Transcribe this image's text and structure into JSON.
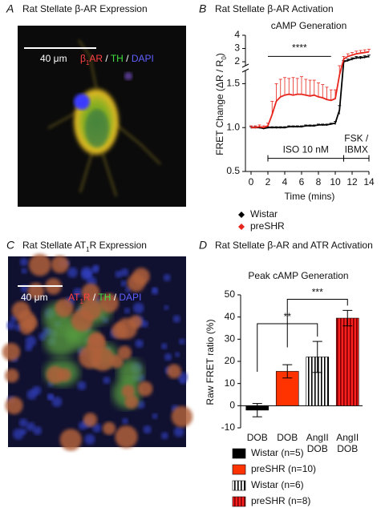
{
  "panels": [
    {
      "label": "A",
      "title": [
        {
          "text": "Rat Stellate β-AR Expression"
        }
      ]
    },
    {
      "label": "B",
      "title": [
        {
          "text": "Rat Stellate β-AR Activation"
        }
      ]
    },
    {
      "label": "C",
      "title": [
        {
          "text": "Rat Stellate AT"
        },
        {
          "text": "1",
          "sub": true
        },
        {
          "text": "R Expression"
        }
      ]
    },
    {
      "label": "D",
      "title": [
        {
          "text": "Rat Stellate β-AR and ATR Activation"
        }
      ]
    }
  ],
  "images": [
    {
      "scale": "40 μm",
      "stain": [
        {
          "text": "β",
          "color": "#ff4040"
        },
        {
          "text": "1",
          "color": "#ff4040",
          "sub": true
        },
        {
          "text": "AR",
          "color": "#ff4040"
        },
        {
          "text": " / ",
          "color": "#ffffff"
        },
        {
          "text": "TH",
          "color": "#40e040"
        },
        {
          "text": " / ",
          "color": "#ffffff"
        },
        {
          "text": "DAPI",
          "color": "#6060ff"
        }
      ]
    },
    {
      "scale": "40 μm",
      "stain": [
        {
          "text": "AT",
          "color": "#ff4040"
        },
        {
          "text": "1",
          "color": "#ff4040",
          "sub": true
        },
        {
          "text": "R",
          "color": "#ff4040"
        },
        {
          "text": " / ",
          "color": "#ffffff"
        },
        {
          "text": "TH",
          "color": "#40e040"
        },
        {
          "text": " / ",
          "color": "#ffffff"
        },
        {
          "text": "DAPI",
          "color": "#6060ff"
        }
      ]
    }
  ],
  "chart_data": [
    {
      "type": "line",
      "title": "cAMP Generation",
      "ylabel": [
        {
          "text": "FRET Change (ΔR / R"
        },
        {
          "text": "0",
          "sub": true
        },
        {
          "text": ")"
        }
      ],
      "xlabel": "Time (mins)",
      "x": [
        0,
        0.5,
        1,
        1.5,
        2,
        2.5,
        3,
        3.5,
        4,
        4.5,
        5,
        5.5,
        6,
        6.5,
        7,
        7.5,
        8,
        8.5,
        9,
        9.5,
        10,
        10.5,
        11,
        11.5,
        12,
        12.5,
        13,
        13.5,
        14
      ],
      "xlim": [
        0,
        14
      ],
      "xticks": [
        0,
        2,
        4,
        6,
        8,
        10,
        12,
        14
      ],
      "ylim": [
        0.5,
        4
      ],
      "ybreak": [
        1.65,
        1.7
      ],
      "yticks": [
        0.5,
        {
          "value": 1,
          "label": "1.0"
        },
        1.5,
        2,
        3,
        4
      ],
      "series": [
        {
          "name": "Wistar",
          "color": "#000000",
          "values": [
            1.0,
            1.0,
            1.0,
            0.99,
            1.0,
            1.0,
            1.0,
            1.0,
            1.0,
            1.01,
            1.01,
            1.01,
            1.01,
            1.02,
            1.02,
            1.02,
            1.03,
            1.03,
            1.03,
            1.04,
            1.05,
            1.2,
            2.0,
            2.1,
            2.2,
            2.3,
            2.3,
            2.35,
            2.4
          ],
          "errors": [
            0.01,
            0.01,
            0.01,
            0.01,
            0.01,
            0.01,
            0.01,
            0.01,
            0.01,
            0.01,
            0.01,
            0.01,
            0.01,
            0.01,
            0.01,
            0.01,
            0.01,
            0.01,
            0.01,
            0.01,
            0.02,
            0.05,
            0.1,
            0.1,
            0.1,
            0.1,
            0.1,
            0.1,
            0.1
          ]
        },
        {
          "name": "preSHR",
          "color": "#e8251c",
          "values": [
            1.0,
            1.0,
            1.01,
            1.0,
            1.02,
            1.15,
            1.3,
            1.35,
            1.37,
            1.38,
            1.37,
            1.38,
            1.38,
            1.37,
            1.36,
            1.37,
            1.35,
            1.34,
            1.32,
            1.31,
            1.33,
            1.6,
            2.2,
            2.4,
            2.5,
            2.6,
            2.65,
            2.7,
            2.75
          ],
          "errors": [
            0.02,
            0.02,
            0.02,
            0.02,
            0.03,
            0.15,
            0.2,
            0.2,
            0.2,
            0.18,
            0.2,
            0.18,
            0.2,
            0.18,
            0.18,
            0.17,
            0.16,
            0.15,
            0.14,
            0.12,
            0.1,
            0.1,
            0.2,
            0.2,
            0.2,
            0.2,
            0.2,
            0.2,
            0.2
          ]
        }
      ],
      "annotations": [
        {
          "text": [
            "****"
          ],
          "x": [
            2,
            9.5
          ],
          "y": 2.4
        },
        {
          "text": [
            "ISO 10 nM"
          ],
          "x": [
            2,
            11
          ],
          "y": 0.65
        },
        {
          "text": [
            "FSK /",
            "IBMX"
          ],
          "x": [
            11,
            14
          ],
          "y": 0.65
        }
      ]
    },
    {
      "type": "bar",
      "title": "Peak cAMP Generation",
      "ylabel": "Raw FRET ratio (%)",
      "categories": [
        [
          "DOB"
        ],
        [
          "DOB"
        ],
        [
          "AngII",
          "DOB"
        ],
        [
          "AngII",
          "DOB"
        ]
      ],
      "values": [
        -2,
        15.5,
        22,
        39.5
      ],
      "errors": [
        3,
        3,
        7,
        3.5
      ],
      "ylim": [
        -10,
        50
      ],
      "yticks": [
        -10,
        0,
        10,
        20,
        30,
        40,
        50
      ],
      "series": [
        {
          "name": "Wistar (n=5)",
          "color": "#000000"
        },
        {
          "name": "preSHR (n=10)",
          "color": "#ff3300"
        },
        {
          "name": "Wistar (n=6)",
          "color": "#000000",
          "hatch": "#ffffff"
        },
        {
          "name": "preSHR (n=8)",
          "color": "#7a0000",
          "hatch": "#ff2020"
        }
      ],
      "annotations": [
        {
          "text": "**",
          "between": [
            0,
            2
          ],
          "y": 37
        },
        {
          "text": "***",
          "between": [
            1,
            3
          ],
          "y": 48
        }
      ]
    }
  ]
}
